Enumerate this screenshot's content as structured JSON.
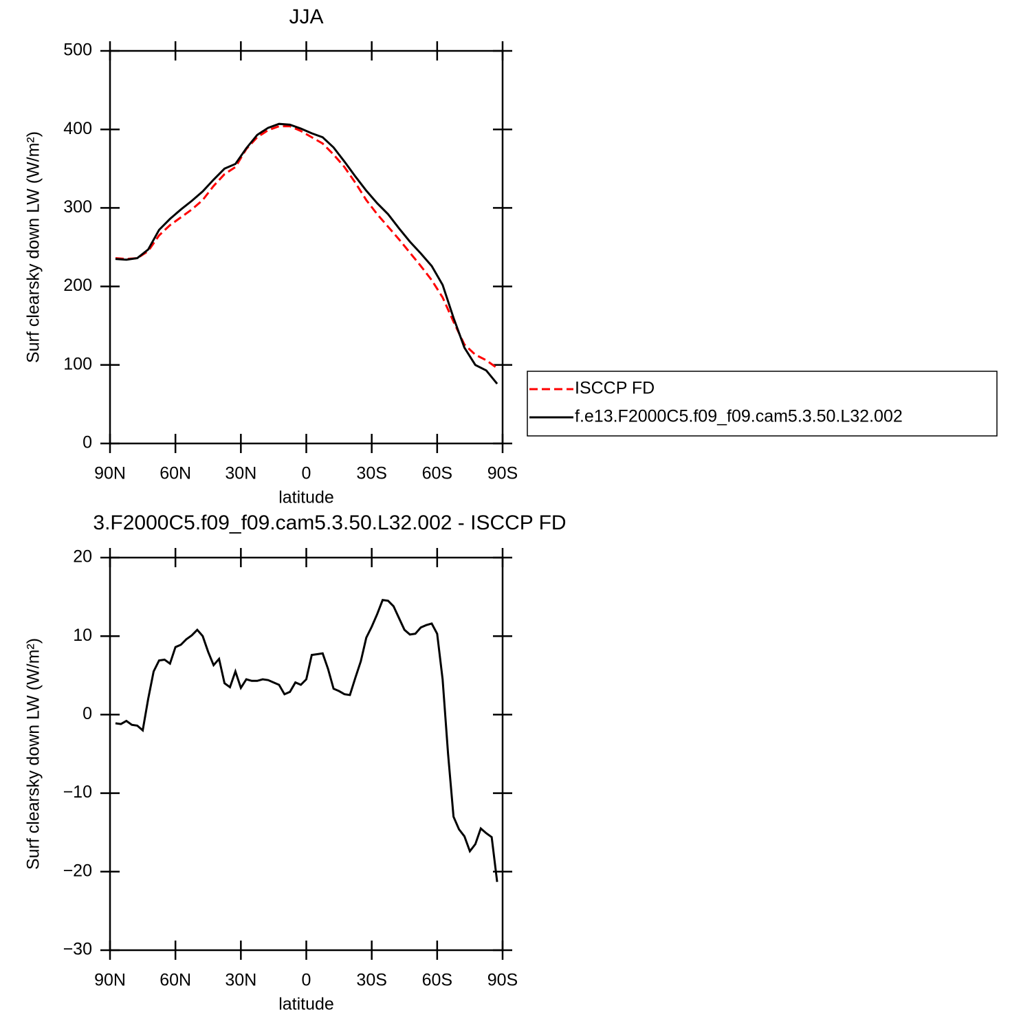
{
  "chart_data": [
    {
      "type": "line",
      "title": "JJA",
      "x_label": "latitude",
      "y_label": "Surf clearsky down LW (W/m²)",
      "x": [
        87.5,
        82.5,
        77.5,
        72.5,
        67.5,
        62.5,
        57.5,
        52.5,
        47.5,
        42.5,
        37.5,
        32.5,
        27.5,
        22.5,
        17.5,
        12.5,
        7.5,
        2.5,
        -2.5,
        -7.5,
        -12.5,
        -17.5,
        -22.5,
        -27.5,
        -32.5,
        -37.5,
        -42.5,
        -47.5,
        -52.5,
        -57.5,
        -62.5,
        -67.5,
        -72.5,
        -77.5,
        -82.5,
        -87.5
      ],
      "xlim": [
        90,
        -90
      ],
      "xticks": [
        {
          "value": 90,
          "label": "90N"
        },
        {
          "value": 60,
          "label": "60N"
        },
        {
          "value": 30,
          "label": "30N"
        },
        0,
        {
          "value": -30,
          "label": "30S"
        },
        {
          "value": -60,
          "label": "60S"
        },
        {
          "value": -90,
          "label": "90S"
        }
      ],
      "ylim": [
        0,
        500
      ],
      "yticks": [
        0,
        100,
        200,
        300,
        400,
        500
      ],
      "legend": "right",
      "series": [
        {
          "name": "ISCCP FD",
          "color": "#ff0000",
          "dash": true,
          "values": [
            236,
            235,
            236,
            245,
            265,
            278,
            288,
            298,
            310,
            328,
            343,
            352,
            375,
            390,
            399,
            404,
            404,
            398,
            390,
            382,
            368,
            352,
            332,
            310,
            292,
            276,
            260,
            243,
            226,
            208,
            186,
            155,
            126,
            113,
            106,
            96
          ]
        },
        {
          "name": "f.e13.F2000C5.f09_f09.cam5.3.50.L32.002",
          "color": "#000000",
          "dash": false,
          "values": [
            235,
            234,
            236,
            247,
            272,
            286,
            298,
            309,
            321,
            336,
            350,
            356,
            376,
            393,
            402,
            407,
            406,
            401,
            395,
            390,
            377,
            359,
            340,
            322,
            306,
            292,
            274,
            257,
            242,
            226,
            202,
            160,
            122,
            100,
            93,
            76
          ]
        }
      ]
    },
    {
      "type": "line",
      "title": "3.F2000C5.f09_f09.cam5.3.50.L32.002 - ISCCP FD",
      "x_label": "latitude",
      "y_label": "Surf clearsky down LW (W/m²)",
      "x": [
        87.5,
        85,
        82.5,
        80,
        77.5,
        75,
        72.5,
        70,
        67.5,
        65,
        62.5,
        60,
        57.5,
        55,
        52.5,
        50,
        47.5,
        45,
        42.5,
        40,
        37.5,
        35,
        32.5,
        30,
        27.5,
        25,
        22.5,
        20,
        17.5,
        15,
        12.5,
        10,
        7.5,
        5,
        2.5,
        0,
        -2.5,
        -5,
        -7.5,
        -10,
        -12.5,
        -15,
        -17.5,
        -20,
        -22.5,
        -25,
        -27.5,
        -30,
        -32.5,
        -35,
        -37.5,
        -40,
        -42.5,
        -45,
        -47.5,
        -50,
        -52.5,
        -55,
        -57.5,
        -60,
        -62.5,
        -65,
        -67.5,
        -70,
        -72.5,
        -75,
        -77.5,
        -80,
        -82.5,
        -85,
        -87.5
      ],
      "xlim": [
        90,
        -90
      ],
      "xticks": [
        {
          "value": 90,
          "label": "90N"
        },
        {
          "value": 60,
          "label": "60N"
        },
        {
          "value": 30,
          "label": "30N"
        },
        0,
        {
          "value": -30,
          "label": "30S"
        },
        {
          "value": -60,
          "label": "60S"
        },
        {
          "value": -90,
          "label": "90S"
        }
      ],
      "ylim": [
        -30,
        20
      ],
      "yticks": [
        {
          "value": -30,
          "label": "−30"
        },
        {
          "value": -20,
          "label": "−20"
        },
        {
          "value": -10,
          "label": "−10"
        },
        0,
        10,
        20
      ],
      "series": [
        {
          "color": "#000000",
          "dash": false,
          "values": [
            -1.1,
            -1.2,
            -0.8,
            -1.3,
            -1.4,
            -2.0,
            2.0,
            5.5,
            6.9,
            7.0,
            6.5,
            8.6,
            8.9,
            9.6,
            10.1,
            10.8,
            10.0,
            8.0,
            6.3,
            7.1,
            4.0,
            3.5,
            5.5,
            3.4,
            4.5,
            4.3,
            4.3,
            4.5,
            4.4,
            4.1,
            3.8,
            2.6,
            2.9,
            4.1,
            3.8,
            4.5,
            7.6,
            7.7,
            7.8,
            5.8,
            3.3,
            3.0,
            2.6,
            2.5,
            4.7,
            6.8,
            9.8,
            11.2,
            12.8,
            14.6,
            14.5,
            13.8,
            12.3,
            10.8,
            10.2,
            10.3,
            11.1,
            11.4,
            11.6,
            10.3,
            4.5,
            -5.0,
            -13.0,
            -14.6,
            -15.5,
            -17.4,
            -16.5,
            -14.5,
            -15.1,
            -15.6,
            -21.3
          ]
        }
      ]
    }
  ]
}
